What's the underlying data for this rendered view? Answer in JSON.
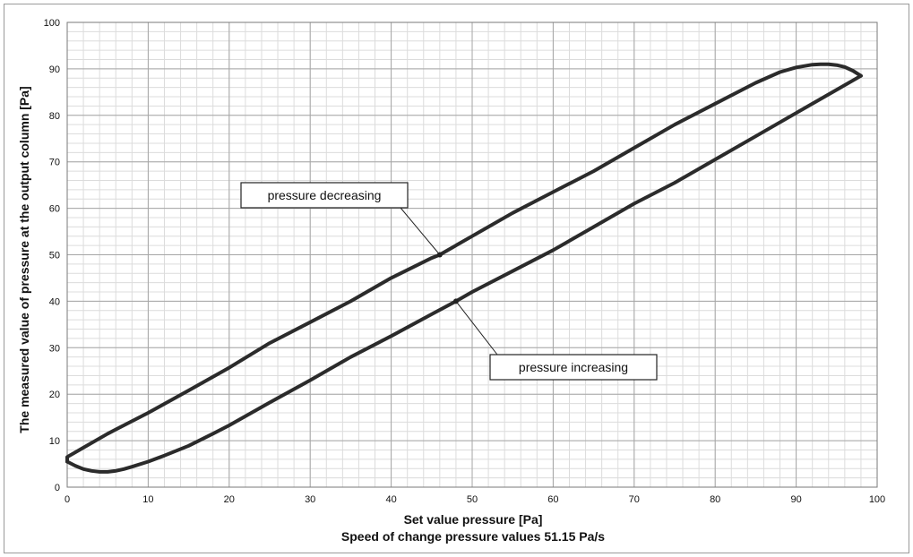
{
  "chart_data": {
    "type": "line",
    "title": "",
    "xlabel": "Set value pressure [Pa]",
    "subtitle": "Speed of change pressure values 51.15 Pa/s",
    "ylabel": "The measured value of pressure at the output column [Pa]",
    "xlim": [
      0,
      100
    ],
    "ylim": [
      0,
      100
    ],
    "x_ticks": [
      0,
      10,
      20,
      30,
      40,
      50,
      60,
      70,
      80,
      90,
      100
    ],
    "y_ticks": [
      0,
      10,
      20,
      30,
      40,
      50,
      60,
      70,
      80,
      90,
      100
    ],
    "grid": true,
    "minor_grid": {
      "x_step": 2,
      "y_step": 2
    },
    "line_color": "#2b2b2b",
    "series": [
      {
        "name": "pressure increasing",
        "points": [
          [
            0,
            5.5
          ],
          [
            1,
            4.6
          ],
          [
            2,
            3.9
          ],
          [
            3,
            3.5
          ],
          [
            4,
            3.3
          ],
          [
            5,
            3.3
          ],
          [
            6,
            3.5
          ],
          [
            7,
            3.9
          ],
          [
            8,
            4.4
          ],
          [
            10,
            5.5
          ],
          [
            12,
            6.8
          ],
          [
            15,
            8.9
          ],
          [
            18,
            11.5
          ],
          [
            20,
            13.3
          ],
          [
            25,
            18.2
          ],
          [
            30,
            23.0
          ],
          [
            35,
            28.0
          ],
          [
            40,
            32.5
          ],
          [
            45,
            37.2
          ],
          [
            48,
            40.0
          ],
          [
            50,
            42.0
          ],
          [
            55,
            46.5
          ],
          [
            60,
            51.0
          ],
          [
            65,
            56.0
          ],
          [
            70,
            61.0
          ],
          [
            75,
            65.5
          ],
          [
            80,
            70.5
          ],
          [
            85,
            75.5
          ],
          [
            90,
            80.5
          ],
          [
            93,
            83.5
          ],
          [
            95,
            85.5
          ],
          [
            98,
            88.5
          ]
        ]
      },
      {
        "name": "pressure decreasing",
        "points": [
          [
            98,
            88.5
          ],
          [
            97,
            89.6
          ],
          [
            96,
            90.4
          ],
          [
            95,
            90.8
          ],
          [
            94,
            91.0
          ],
          [
            93,
            91.0
          ],
          [
            92,
            90.9
          ],
          [
            90,
            90.3
          ],
          [
            88,
            89.3
          ],
          [
            85,
            87.0
          ],
          [
            80,
            82.5
          ],
          [
            75,
            78.0
          ],
          [
            70,
            73.0
          ],
          [
            65,
            68.0
          ],
          [
            60,
            63.5
          ],
          [
            55,
            59.0
          ],
          [
            50,
            54.0
          ],
          [
            46,
            50.0
          ],
          [
            45,
            49.3
          ],
          [
            40,
            45.0
          ],
          [
            35,
            40.0
          ],
          [
            30,
            35.5
          ],
          [
            25,
            31.0
          ],
          [
            20,
            25.7
          ],
          [
            15,
            20.8
          ],
          [
            10,
            16.0
          ],
          [
            5,
            11.5
          ],
          [
            2,
            8.5
          ],
          [
            0,
            6.5
          ],
          [
            0,
            5.5
          ]
        ]
      }
    ],
    "annotations": [
      {
        "text": "pressure decreasing",
        "point": [
          46,
          50
        ]
      },
      {
        "text": "pressure increasing",
        "point": [
          48,
          40
        ]
      }
    ]
  }
}
